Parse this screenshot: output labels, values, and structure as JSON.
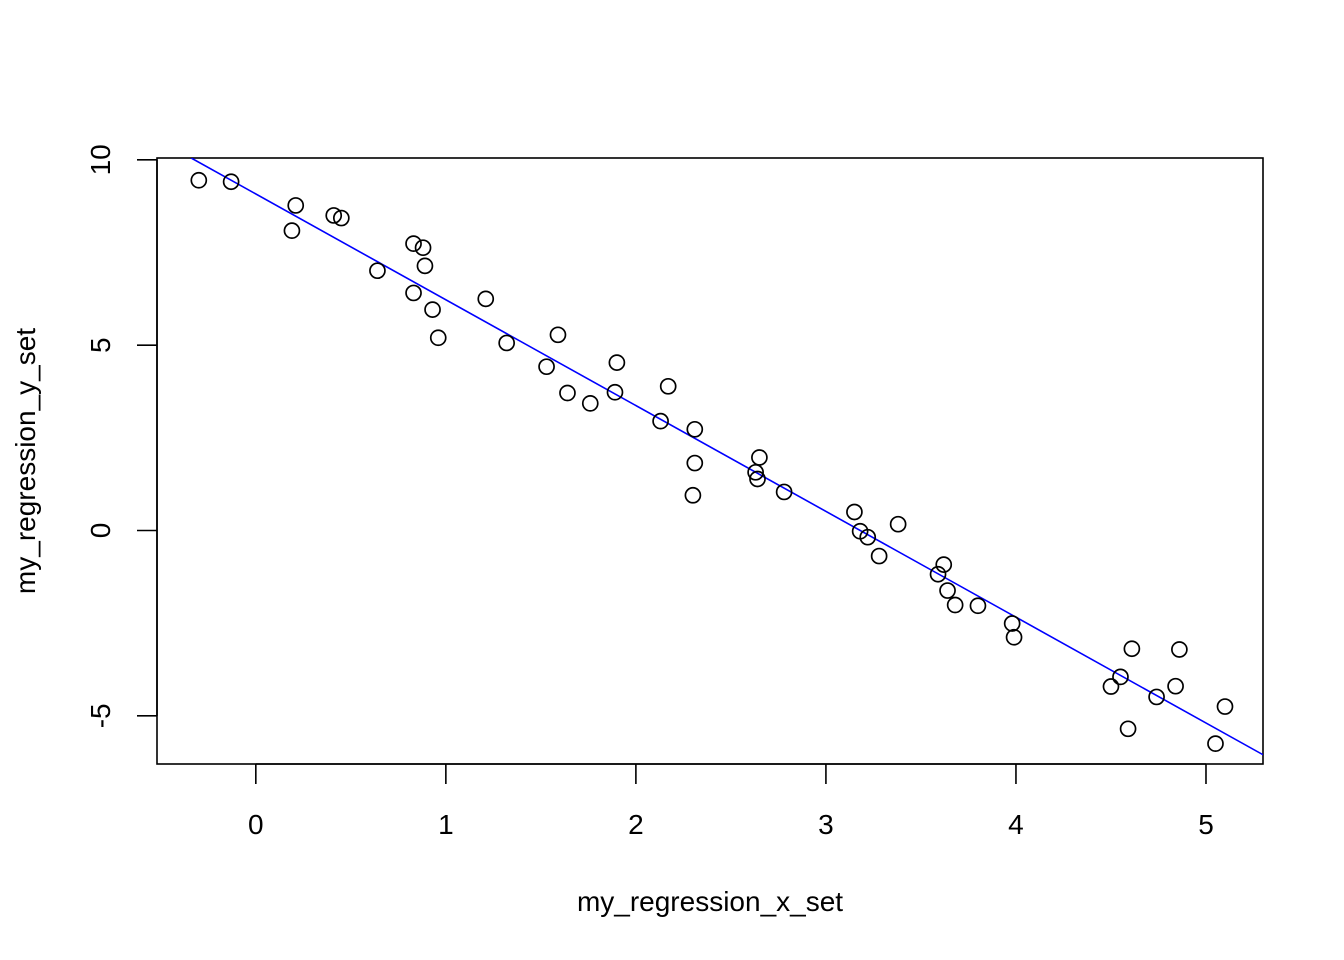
{
  "chart_data": {
    "type": "scatter",
    "title": "",
    "xlabel": "my_regression_x_set",
    "ylabel": "my_regression_y_set",
    "xlim": [
      -0.52,
      5.3
    ],
    "ylim": [
      -6.3,
      10.05
    ],
    "x_ticks": [
      0,
      1,
      2,
      3,
      4,
      5
    ],
    "x_tick_labels": [
      "0",
      "1",
      "2",
      "3",
      "4",
      "5"
    ],
    "y_ticks": [
      -5,
      0,
      5,
      10
    ],
    "y_tick_labels": [
      "-5",
      "0",
      "5",
      "10"
    ],
    "grid": false,
    "legend": "none",
    "point_color": "#000000",
    "line_color": "#0000ff",
    "points": [
      {
        "x": -0.3,
        "y": 9.45
      },
      {
        "x": -0.13,
        "y": 9.41
      },
      {
        "x": 0.19,
        "y": 8.09
      },
      {
        "x": 0.21,
        "y": 8.77
      },
      {
        "x": 0.41,
        "y": 8.5
      },
      {
        "x": 0.45,
        "y": 8.43
      },
      {
        "x": 0.64,
        "y": 7.01
      },
      {
        "x": 0.83,
        "y": 6.41
      },
      {
        "x": 0.83,
        "y": 7.74
      },
      {
        "x": 0.88,
        "y": 7.63
      },
      {
        "x": 0.89,
        "y": 7.14
      },
      {
        "x": 0.93,
        "y": 5.96
      },
      {
        "x": 0.96,
        "y": 5.2
      },
      {
        "x": 1.21,
        "y": 6.25
      },
      {
        "x": 1.32,
        "y": 5.06
      },
      {
        "x": 1.53,
        "y": 4.42
      },
      {
        "x": 1.59,
        "y": 5.28
      },
      {
        "x": 1.64,
        "y": 3.71
      },
      {
        "x": 1.76,
        "y": 3.43
      },
      {
        "x": 1.89,
        "y": 3.73
      },
      {
        "x": 1.9,
        "y": 4.53
      },
      {
        "x": 2.13,
        "y": 2.95
      },
      {
        "x": 2.17,
        "y": 3.89
      },
      {
        "x": 2.3,
        "y": 0.95
      },
      {
        "x": 2.31,
        "y": 2.73
      },
      {
        "x": 2.31,
        "y": 1.82
      },
      {
        "x": 2.63,
        "y": 1.57
      },
      {
        "x": 2.64,
        "y": 1.39
      },
      {
        "x": 2.65,
        "y": 1.97
      },
      {
        "x": 2.78,
        "y": 1.04
      },
      {
        "x": 3.15,
        "y": 0.5
      },
      {
        "x": 3.18,
        "y": -0.02
      },
      {
        "x": 3.22,
        "y": -0.18
      },
      {
        "x": 3.28,
        "y": -0.69
      },
      {
        "x": 3.38,
        "y": 0.17
      },
      {
        "x": 3.59,
        "y": -1.18
      },
      {
        "x": 3.62,
        "y": -0.92
      },
      {
        "x": 3.64,
        "y": -1.62
      },
      {
        "x": 3.68,
        "y": -2.01
      },
      {
        "x": 3.8,
        "y": -2.03
      },
      {
        "x": 3.98,
        "y": -2.51
      },
      {
        "x": 3.99,
        "y": -2.88
      },
      {
        "x": 4.5,
        "y": -4.21
      },
      {
        "x": 4.55,
        "y": -3.95
      },
      {
        "x": 4.59,
        "y": -5.35
      },
      {
        "x": 4.61,
        "y": -3.19
      },
      {
        "x": 4.74,
        "y": -4.49
      },
      {
        "x": 4.84,
        "y": -4.2
      },
      {
        "x": 4.86,
        "y": -3.21
      },
      {
        "x": 5.05,
        "y": -5.75
      },
      {
        "x": 5.1,
        "y": -4.75
      }
    ],
    "fit_line": {
      "x": [
        -0.34,
        5.3
      ],
      "y": [
        10.05,
        -6.05
      ]
    }
  }
}
